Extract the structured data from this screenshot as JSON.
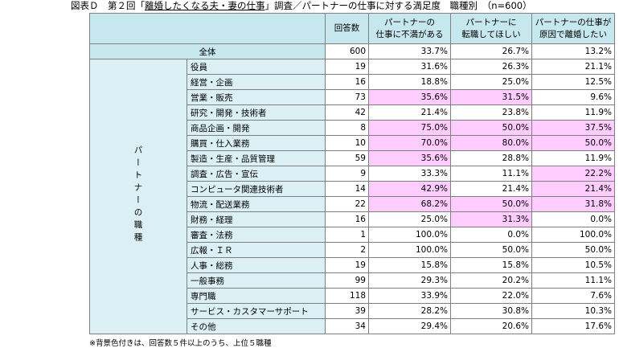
{
  "title": {
    "prefix": "図表Ｄ　第２回「",
    "survey": "離婚したくなる夫・妻の仕事",
    "suffix": "」調査／パートナーの仕事に対する満足度　職種別　（n=600）"
  },
  "header": {
    "col_count": "回答数",
    "col_dissatisfied_1": "パートナーの",
    "col_dissatisfied_2": "仕事に不満がある",
    "col_wantchange_1": "パートナーに",
    "col_wantchange_2": "転職してほしい",
    "col_divorce_1": "パートナーの仕事が",
    "col_divorce_2": "原因で離婚したい"
  },
  "total": {
    "label": "全体",
    "count": "600",
    "dissatisfied": "33.7%",
    "want_change": "26.7%",
    "divorce": "13.2%"
  },
  "group_label": "パートナーの職種",
  "rows": [
    {
      "label": "役員",
      "count": "19",
      "dissatisfied": "31.6%",
      "want_change": "26.3%",
      "divorce": "21.1%",
      "hl": [
        false,
        false,
        false
      ]
    },
    {
      "label": "経営・企画",
      "count": "16",
      "dissatisfied": "18.8%",
      "want_change": "25.0%",
      "divorce": "12.5%",
      "hl": [
        false,
        false,
        false
      ]
    },
    {
      "label": "営業・販売",
      "count": "73",
      "dissatisfied": "35.6%",
      "want_change": "31.5%",
      "divorce": "9.6%",
      "hl": [
        true,
        true,
        false
      ]
    },
    {
      "label": "研究・開発・技術者",
      "count": "42",
      "dissatisfied": "21.4%",
      "want_change": "23.8%",
      "divorce": "11.9%",
      "hl": [
        false,
        false,
        false
      ]
    },
    {
      "label": "商品企画・開発",
      "count": "8",
      "dissatisfied": "75.0%",
      "want_change": "50.0%",
      "divorce": "37.5%",
      "hl": [
        true,
        true,
        true
      ]
    },
    {
      "label": "購買・仕入業務",
      "count": "10",
      "dissatisfied": "70.0%",
      "want_change": "80.0%",
      "divorce": "50.0%",
      "hl": [
        true,
        true,
        true
      ]
    },
    {
      "label": "製造・生産・品質管理",
      "count": "59",
      "dissatisfied": "35.6%",
      "want_change": "28.8%",
      "divorce": "11.9%",
      "hl": [
        true,
        false,
        false
      ]
    },
    {
      "label": "調査・広告・宣伝",
      "count": "9",
      "dissatisfied": "33.3%",
      "want_change": "11.1%",
      "divorce": "22.2%",
      "hl": [
        false,
        false,
        true
      ]
    },
    {
      "label": "コンピュータ関連技術者",
      "count": "14",
      "dissatisfied": "42.9%",
      "want_change": "21.4%",
      "divorce": "21.4%",
      "hl": [
        true,
        false,
        true
      ]
    },
    {
      "label": "物流・配送業務",
      "count": "22",
      "dissatisfied": "68.2%",
      "want_change": "50.0%",
      "divorce": "31.8%",
      "hl": [
        true,
        true,
        true
      ]
    },
    {
      "label": "財務・経理",
      "count": "16",
      "dissatisfied": "25.0%",
      "want_change": "31.3%",
      "divorce": "0.0%",
      "hl": [
        false,
        true,
        false
      ]
    },
    {
      "label": "審査・法務",
      "count": "1",
      "dissatisfied": "100.0%",
      "want_change": "0.0%",
      "divorce": "100.0%",
      "hl": [
        false,
        false,
        false
      ]
    },
    {
      "label": "広報・ＩＲ",
      "count": "2",
      "dissatisfied": "100.0%",
      "want_change": "50.0%",
      "divorce": "50.0%",
      "hl": [
        false,
        false,
        false
      ]
    },
    {
      "label": "人事・総務",
      "count": "19",
      "dissatisfied": "15.8%",
      "want_change": "15.8%",
      "divorce": "10.5%",
      "hl": [
        false,
        false,
        false
      ]
    },
    {
      "label": "一般事務",
      "count": "99",
      "dissatisfied": "29.3%",
      "want_change": "20.2%",
      "divorce": "11.1%",
      "hl": [
        false,
        false,
        false
      ]
    },
    {
      "label": "専門職",
      "count": "118",
      "dissatisfied": "33.9%",
      "want_change": "22.0%",
      "divorce": "7.6%",
      "hl": [
        false,
        false,
        false
      ]
    },
    {
      "label": "サービス・カスタマーサポート",
      "count": "39",
      "dissatisfied": "28.2%",
      "want_change": "30.8%",
      "divorce": "10.3%",
      "hl": [
        false,
        false,
        false
      ]
    },
    {
      "label": "その他",
      "count": "34",
      "dissatisfied": "29.4%",
      "want_change": "20.6%",
      "divorce": "17.6%",
      "hl": [
        false,
        false,
        false
      ]
    }
  ],
  "note": "※背景色付きは、回答数５件以上のうち、上位５職種",
  "colors": {
    "header_bg": "#c6e7ee",
    "label_bg": "#dbf0f4",
    "highlight": "#ffccff",
    "border": "#7f7f7f"
  }
}
